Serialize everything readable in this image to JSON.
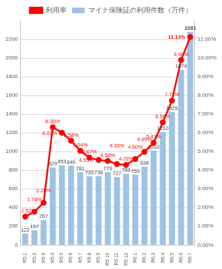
{
  "chart_data": {
    "type": "bar",
    "categories": [
      "R5.1",
      "R5.2",
      "R5.3",
      "R5.4",
      "R5.5",
      "R5.6",
      "R5.7",
      "R5.8",
      "R5.9",
      "R5.10",
      "R5.11",
      "R5.12",
      "R6.1",
      "R6.2",
      "R6.3",
      "R6.4",
      "R6.5",
      "R6.6",
      "R6.7"
    ],
    "series": [
      {
        "name": "マイナ保険証の利用件数（万件）",
        "type": "bar",
        "color": "#9dc3e6",
        "values": [
          122,
          157,
          267,
          829,
          853,
          849,
          781,
          735,
          736,
          779,
          727,
          763,
          753,
          838,
          1010,
          1210,
          1425,
          1874,
          2281
        ]
      },
      {
        "name": "利用率",
        "type": "line",
        "color": "#ff0000",
        "marker": "circle",
        "axis": "y2",
        "values": [
          1.52,
          1.78,
          2.26,
          6.3,
          6.01,
          5.58,
          5.04,
          4.67,
          4.55,
          4.5,
          4.33,
          4.29,
          4.6,
          4.99,
          5.47,
          6.56,
          7.73,
          9.9,
          11.13
        ],
        "value_labels": [
          "1.52%",
          "1.78%",
          "2.26%",
          "6.30%",
          "6.01%",
          "5.58%",
          "5.04%",
          "4.67%",
          "4.55%",
          "4.50%",
          "4.33%",
          "4.29%",
          "4.60%",
          "4.99%",
          "5.47%",
          "6.56%",
          "7.73%",
          "9.90%",
          "11.13%"
        ]
      }
    ],
    "ylim": [
      0,
      2400
    ],
    "yticks": [
      0,
      200,
      400,
      600,
      800,
      1000,
      1200,
      1400,
      1600,
      1800,
      2000,
      2200
    ],
    "y2lim": [
      0,
      12
    ],
    "y2ticks": [
      {
        "value": 0,
        "label": "0.00%"
      },
      {
        "value": 1,
        "label": "1.00%"
      },
      {
        "value": 2,
        "label": "2.00%"
      },
      {
        "value": 3,
        "label": "3.00%"
      },
      {
        "value": 4,
        "label": "4.00%"
      },
      {
        "value": 5,
        "label": "5.00%"
      },
      {
        "value": 6,
        "label": "6.00%"
      },
      {
        "value": 7,
        "label": "7.00%"
      },
      {
        "value": 8,
        "label": "8.00%"
      },
      {
        "value": 9,
        "label": "9.00%"
      },
      {
        "value": 10,
        "label": "10.00%"
      },
      {
        "value": 11,
        "label": "11.00%"
      }
    ],
    "grid": true,
    "legend": "top",
    "data_labels": true
  }
}
